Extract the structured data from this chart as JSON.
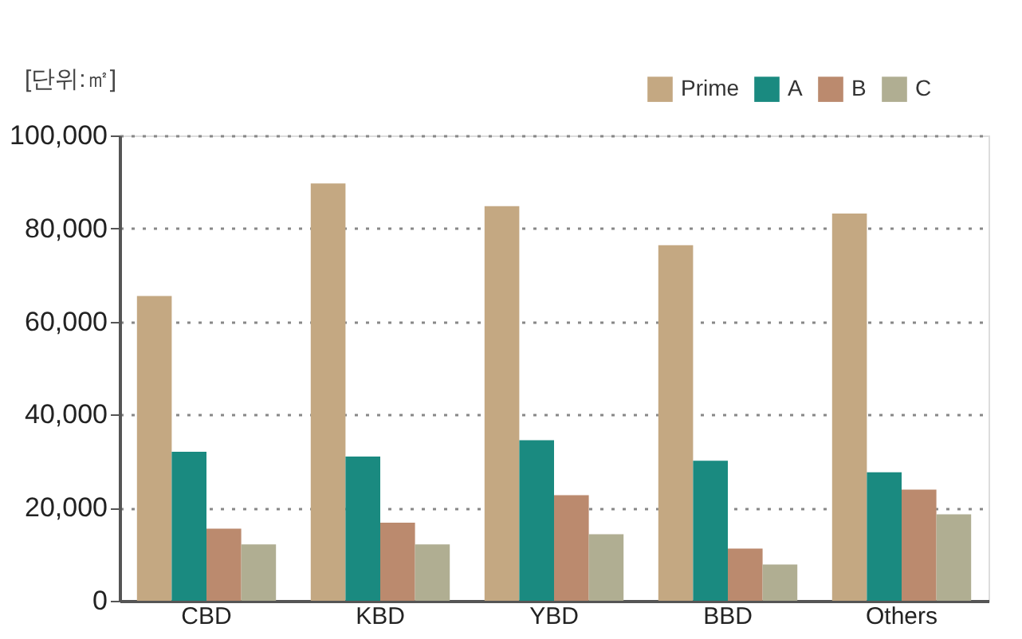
{
  "chart_data": {
    "type": "bar",
    "ylabel": "[단위:㎡]",
    "categories": [
      "CBD",
      "KBD",
      "YBD",
      "BBD",
      "Others"
    ],
    "series": [
      {
        "name": "Prime",
        "color": "#c4a882",
        "values": [
          65500,
          89700,
          84800,
          76400,
          83200
        ]
      },
      {
        "name": "A",
        "color": "#1a8a80",
        "values": [
          32000,
          31000,
          34500,
          30100,
          27600
        ]
      },
      {
        "name": "B",
        "color": "#bb8a6e",
        "values": [
          15500,
          16800,
          22700,
          11200,
          23900
        ]
      },
      {
        "name": "C",
        "color": "#b0ae92",
        "values": [
          12100,
          12100,
          14300,
          7800,
          18600
        ]
      }
    ],
    "ylim": [
      0,
      100000
    ],
    "yticks": [
      0,
      {
        "value": 20000,
        "label": "20,000"
      },
      {
        "value": 40000,
        "label": "40,000"
      },
      {
        "value": 60000,
        "label": "60,000"
      },
      {
        "value": 80000,
        "label": "80,000"
      },
      {
        "value": 100000,
        "label": "100,000"
      }
    ],
    "grid": "y",
    "legend": "top right"
  }
}
